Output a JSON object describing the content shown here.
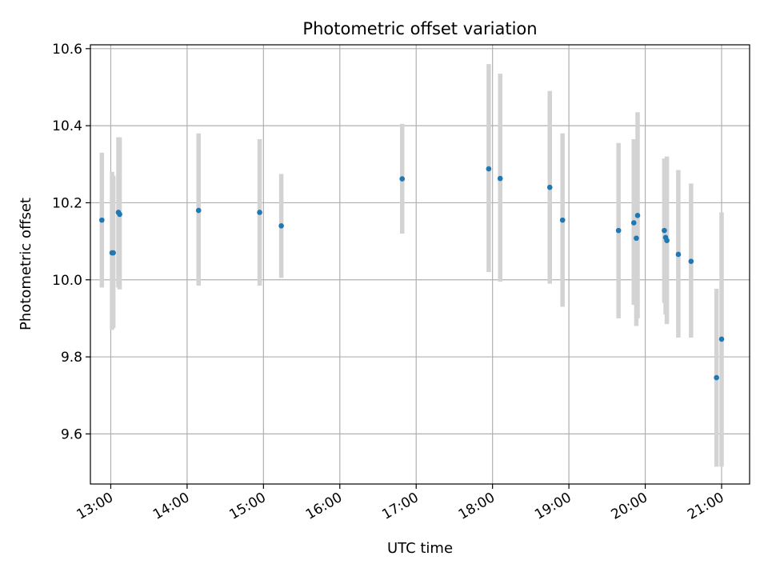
{
  "chart_data": {
    "type": "scatter",
    "title": "Photometric offset variation",
    "xlabel": "UTC time",
    "ylabel": "Photometric offset",
    "x_ticks": [
      "13:00",
      "14:00",
      "15:00",
      "16:00",
      "17:00",
      "18:00",
      "19:00",
      "20:00",
      "21:00"
    ],
    "y_ticks": [
      "9.6",
      "9.8",
      "10.0",
      "10.2",
      "10.4",
      "10.6"
    ],
    "xlim": [
      "12:44",
      "21:22"
    ],
    "ylim": [
      9.47,
      10.61
    ],
    "grid": true,
    "colors": {
      "point": "#1f77b4",
      "errorbar": "#d3d3d3",
      "grid": "#b0b0b0"
    },
    "series": [
      {
        "points": [
          {
            "x": "12:53",
            "y": 10.155,
            "ylo": 9.98,
            "yhi": 10.33
          },
          {
            "x": "13:01",
            "y": 10.07,
            "ylo": 9.87,
            "yhi": 10.28
          },
          {
            "x": "13:02",
            "y": 10.07,
            "ylo": 9.875,
            "yhi": 10.27
          },
          {
            "x": "13:06",
            "y": 10.175,
            "ylo": 9.98,
            "yhi": 10.37
          },
          {
            "x": "13:07",
            "y": 10.17,
            "ylo": 9.975,
            "yhi": 10.37
          },
          {
            "x": "14:09",
            "y": 10.18,
            "ylo": 9.985,
            "yhi": 10.38
          },
          {
            "x": "14:57",
            "y": 10.175,
            "ylo": 9.985,
            "yhi": 10.365
          },
          {
            "x": "15:14",
            "y": 10.14,
            "ylo": 10.005,
            "yhi": 10.275
          },
          {
            "x": "16:49",
            "y": 10.262,
            "ylo": 10.12,
            "yhi": 10.405
          },
          {
            "x": "17:57",
            "y": 10.288,
            "ylo": 10.02,
            "yhi": 10.56
          },
          {
            "x": "18:06",
            "y": 10.263,
            "ylo": 9.995,
            "yhi": 10.535
          },
          {
            "x": "18:45",
            "y": 10.24,
            "ylo": 9.99,
            "yhi": 10.49
          },
          {
            "x": "18:55",
            "y": 10.155,
            "ylo": 9.93,
            "yhi": 10.38
          },
          {
            "x": "19:39",
            "y": 10.128,
            "ylo": 9.9,
            "yhi": 10.355
          },
          {
            "x": "19:51",
            "y": 10.148,
            "ylo": 9.935,
            "yhi": 10.365
          },
          {
            "x": "19:53",
            "y": 10.108,
            "ylo": 9.88,
            "yhi": 10.335
          },
          {
            "x": "19:54",
            "y": 10.167,
            "ylo": 9.9,
            "yhi": 10.435
          },
          {
            "x": "20:15",
            "y": 10.128,
            "ylo": 9.94,
            "yhi": 10.315
          },
          {
            "x": "20:16",
            "y": 10.11,
            "ylo": 9.91,
            "yhi": 10.31
          },
          {
            "x": "20:17",
            "y": 10.102,
            "ylo": 9.885,
            "yhi": 10.32
          },
          {
            "x": "20:26",
            "y": 10.066,
            "ylo": 9.85,
            "yhi": 10.285
          },
          {
            "x": "20:36",
            "y": 10.048,
            "ylo": 9.85,
            "yhi": 10.25
          },
          {
            "x": "20:56",
            "y": 9.746,
            "ylo": 9.515,
            "yhi": 9.977
          },
          {
            "x": "21:00",
            "y": 9.846,
            "ylo": 9.515,
            "yhi": 10.175
          }
        ]
      }
    ]
  }
}
